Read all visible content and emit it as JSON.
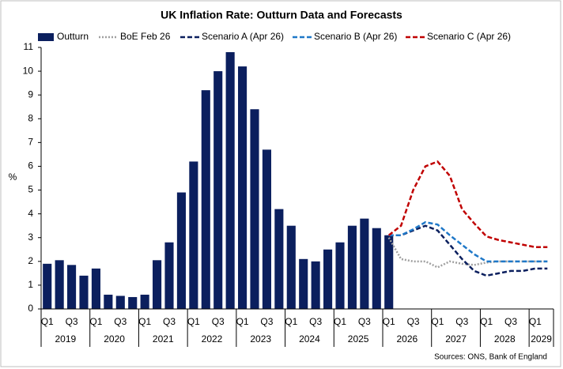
{
  "chart_data": {
    "type": "bar",
    "title": "UK Inflation Rate: Outturn Data and Forecasts",
    "y_label": "%",
    "source": "Sources: ONS, Bank of England",
    "categories": [
      "Q1",
      null,
      "Q3",
      null,
      "Q1",
      null,
      "Q3",
      null,
      "Q1",
      null,
      "Q3",
      null,
      "Q1",
      null,
      "Q3",
      null,
      "Q1",
      null,
      "Q3",
      null,
      "Q1",
      null,
      "Q3",
      null,
      "Q1",
      null,
      "Q3",
      null,
      "Q1",
      null,
      "Q3",
      null,
      "Q1",
      null,
      "Q3",
      null,
      "Q1",
      null,
      "Q3",
      null,
      "Q1",
      null
    ],
    "years": [
      "2019",
      "2020",
      "2021",
      "2022",
      "2023",
      "2024",
      "2025",
      "2026",
      "2027",
      "2028",
      "2029"
    ],
    "ylim": [
      0,
      11
    ],
    "yticks": [
      0,
      1,
      2,
      3,
      4,
      5,
      6,
      7,
      8,
      9,
      10,
      11
    ],
    "series": [
      {
        "name": "Outturn",
        "type": "bar",
        "color": "#0b1f5e",
        "values": [
          1.9,
          2.05,
          1.85,
          1.4,
          1.7,
          0.6,
          0.55,
          0.5,
          0.6,
          2.05,
          2.8,
          4.9,
          6.2,
          9.2,
          10.0,
          10.8,
          10.2,
          8.4,
          6.7,
          4.2,
          3.5,
          2.1,
          2.0,
          2.5,
          2.8,
          3.5,
          3.8,
          3.4,
          3.1,
          null,
          null,
          null,
          null,
          null,
          null,
          null,
          null,
          null,
          null,
          null,
          null,
          null
        ]
      },
      {
        "name": "BoE Feb 26",
        "type": "line",
        "style": "dotted",
        "color": "#a0a0a0",
        "values": [
          null,
          null,
          null,
          null,
          null,
          null,
          null,
          null,
          null,
          null,
          null,
          null,
          null,
          null,
          null,
          null,
          null,
          null,
          null,
          null,
          null,
          null,
          null,
          null,
          null,
          null,
          null,
          null,
          3.0,
          2.1,
          2.0,
          2.0,
          1.75,
          2.0,
          1.9,
          1.85,
          1.95,
          2.0,
          2.0,
          2.0,
          2.0,
          2.0
        ]
      },
      {
        "name": "Scenario A (Apr 26)",
        "type": "line",
        "style": "dashed",
        "color": "#0b1f5e",
        "values": [
          null,
          null,
          null,
          null,
          null,
          null,
          null,
          null,
          null,
          null,
          null,
          null,
          null,
          null,
          null,
          null,
          null,
          null,
          null,
          null,
          null,
          null,
          null,
          null,
          null,
          null,
          null,
          null,
          3.1,
          3.1,
          3.3,
          3.5,
          3.3,
          2.7,
          2.1,
          1.6,
          1.4,
          1.5,
          1.6,
          1.6,
          1.7,
          1.7
        ]
      },
      {
        "name": "Scenario B (Apr 26)",
        "type": "line",
        "style": "dashed",
        "color": "#1f78c8",
        "values": [
          null,
          null,
          null,
          null,
          null,
          null,
          null,
          null,
          null,
          null,
          null,
          null,
          null,
          null,
          null,
          null,
          null,
          null,
          null,
          null,
          null,
          null,
          null,
          null,
          null,
          null,
          null,
          null,
          3.1,
          3.1,
          3.35,
          3.65,
          3.55,
          3.1,
          2.7,
          2.3,
          2.0,
          2.0,
          2.0,
          2.0,
          2.0,
          2.0
        ]
      },
      {
        "name": "Scenario C (Apr 26)",
        "type": "line",
        "style": "dashed",
        "color": "#c00000",
        "values": [
          null,
          null,
          null,
          null,
          null,
          null,
          null,
          null,
          null,
          null,
          null,
          null,
          null,
          null,
          null,
          null,
          null,
          null,
          null,
          null,
          null,
          null,
          null,
          null,
          null,
          null,
          null,
          null,
          3.1,
          3.5,
          5.0,
          6.0,
          6.2,
          5.6,
          4.2,
          3.6,
          3.05,
          2.9,
          2.8,
          2.7,
          2.6,
          2.6
        ]
      }
    ]
  }
}
